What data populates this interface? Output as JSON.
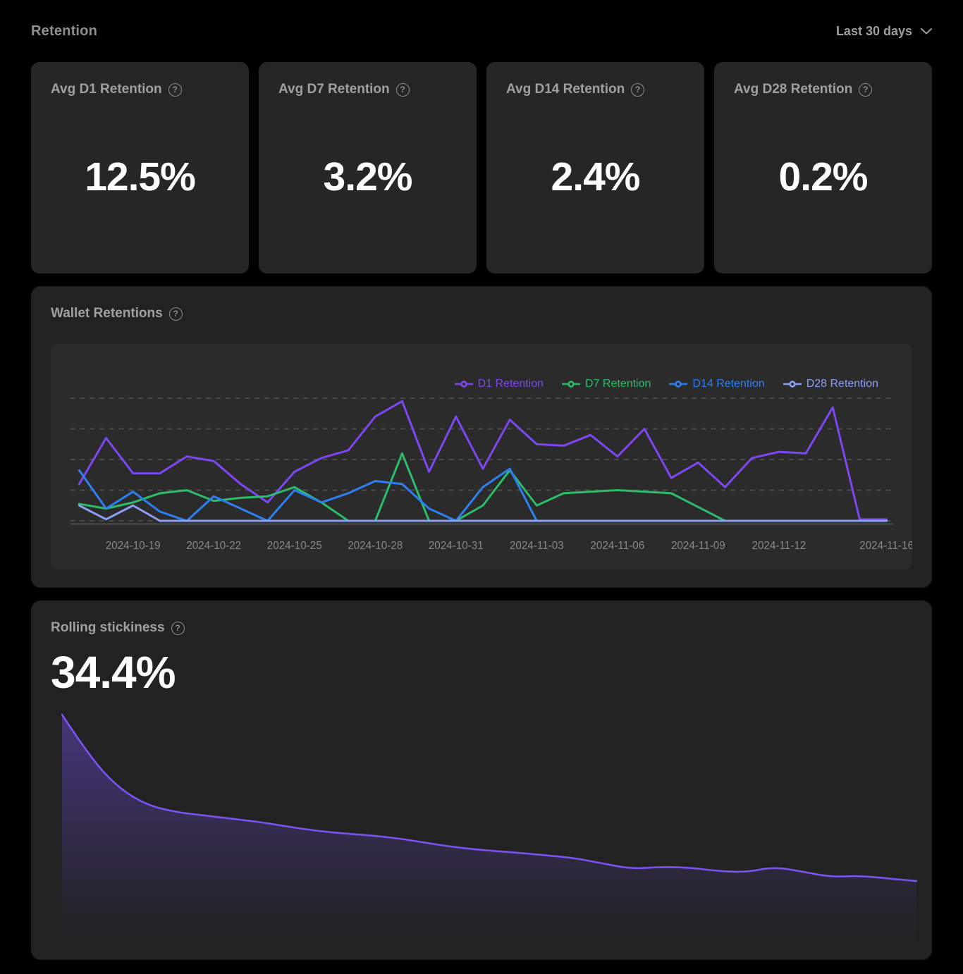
{
  "header": {
    "title": "Retention",
    "range_selector": {
      "label": "Last 30 days"
    }
  },
  "stat_cards": [
    {
      "title": "Avg D1 Retention",
      "value": "12.5%"
    },
    {
      "title": "Avg D7 Retention",
      "value": "3.2%"
    },
    {
      "title": "Avg D14 Retention",
      "value": "2.4%"
    },
    {
      "title": "Avg D28 Retention",
      "value": "0.2%"
    }
  ],
  "wallet_retentions": {
    "title": "Wallet Retentions",
    "chart_data": {
      "type": "line",
      "grid": "dashed-horizontal",
      "legend_position": "top-right",
      "ylim": [
        0,
        42
      ],
      "gridline_values": [
        0,
        10,
        20,
        30,
        40
      ],
      "categories": [
        "2024-10-17",
        "2024-10-18",
        "2024-10-19",
        "2024-10-20",
        "2024-10-21",
        "2024-10-22",
        "2024-10-23",
        "2024-10-24",
        "2024-10-25",
        "2024-10-26",
        "2024-10-27",
        "2024-10-28",
        "2024-10-29",
        "2024-10-30",
        "2024-10-31",
        "2024-11-01",
        "2024-11-02",
        "2024-11-03",
        "2024-11-04",
        "2024-11-05",
        "2024-11-06",
        "2024-11-07",
        "2024-11-08",
        "2024-11-09",
        "2024-11-10",
        "2024-11-11",
        "2024-11-12",
        "2024-11-13",
        "2024-11-14",
        "2024-11-15",
        "2024-11-16"
      ],
      "x_tick_indices": [
        2,
        5,
        8,
        11,
        14,
        17,
        20,
        23,
        26,
        30
      ],
      "x_tick_labels": [
        "2024-10-19",
        "2024-10-22",
        "2024-10-25",
        "2024-10-28",
        "2024-10-31",
        "2024-11-03",
        "2024-11-06",
        "2024-11-09",
        "2024-11-12",
        "2024-11-16"
      ],
      "series": [
        {
          "name": "D1 Retention",
          "color": "#7d47f2",
          "values": [
            12,
            27,
            15.5,
            15.5,
            21,
            19.5,
            12,
            6,
            16,
            20.5,
            23,
            34,
            39,
            16,
            34,
            17,
            33,
            25,
            24.5,
            28,
            21,
            30,
            14,
            19,
            11,
            20.5,
            22.5,
            22,
            37,
            0.5,
            0.5
          ]
        },
        {
          "name": "D7 Retention",
          "color": "#2bbd68",
          "values": [
            5.5,
            4,
            6,
            9,
            10,
            6.5,
            7.5,
            8,
            11,
            6,
            0,
            0,
            22,
            0,
            0,
            5,
            16.5,
            5,
            9,
            9.5,
            10,
            9.5,
            9,
            4.5,
            0,
            0,
            0,
            0,
            0,
            0,
            0
          ]
        },
        {
          "name": "D14 Retention",
          "color": "#2e7ff2",
          "values": [
            16.5,
            4,
            9.5,
            3,
            0,
            8,
            4,
            0,
            10,
            6,
            9,
            13,
            12,
            4,
            0,
            11,
            17,
            0,
            0,
            0,
            0,
            0,
            0,
            0,
            0,
            0,
            0,
            0,
            0,
            0,
            0
          ]
        },
        {
          "name": "D28 Retention",
          "color": "#8ba0f2",
          "values": [
            5,
            0.5,
            5,
            0,
            0,
            0,
            0,
            0,
            0,
            0,
            0,
            0,
            0,
            0,
            0,
            0,
            0,
            0,
            0,
            0,
            0,
            0,
            0,
            0,
            0,
            0,
            0,
            0,
            0,
            0,
            0
          ]
        }
      ]
    }
  },
  "rolling_stickiness": {
    "title": "Rolling stickiness",
    "value": "34.4%",
    "chart_data": {
      "type": "area",
      "x_axis": "hidden",
      "y_axis": "hidden",
      "ymax": 34.4,
      "line_color": "#7c52f0",
      "fill_color": "#6a4bd8",
      "values": [
        34.4,
        28,
        23.5,
        21,
        20,
        19.5,
        19,
        18.5,
        17.8,
        17.2,
        16.8,
        16.5,
        16,
        15.3,
        14.7,
        14.3,
        14,
        13.6,
        13.2,
        12.4,
        11.6,
        11.9,
        11.8,
        11.3,
        11.1,
        11.9,
        11.2,
        10.4,
        10.6,
        10.2,
        9.8
      ]
    }
  },
  "colors": {
    "page_bg": "#000000",
    "stat_card_bg": "#262626",
    "section_bg": "#222222",
    "chart_panel_bg": "#2b2b2b",
    "title_gray": "#a0a0a0",
    "axis_label_gray": "#878787",
    "gridline_gray": "#565656",
    "value_white": "#ffffff"
  }
}
